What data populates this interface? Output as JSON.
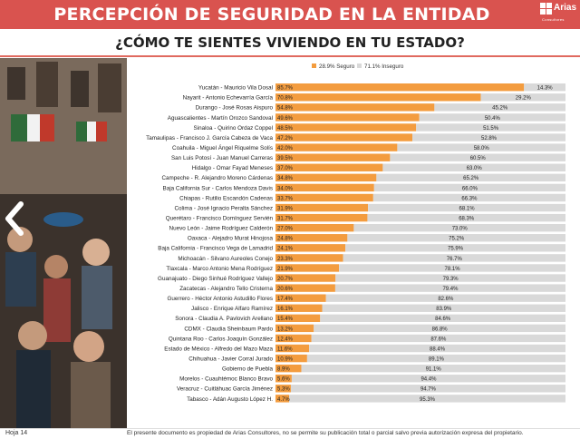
{
  "header": {
    "title": "PERCEPCIÓN DE SEGURIDAD EN LA ENTIDAD",
    "logo_brand": "Arias",
    "logo_sub": "Consultores"
  },
  "subtitle": "¿CÓMO TE SIENTES VIVIENDO EN TU ESTADO?",
  "footer": {
    "page": "Hoja 14",
    "note": "El presente documento es propiedad de Arias Consultores, no se permite su publicación total o parcial salvo previa autorización expresa del propietario."
  },
  "colors": {
    "header_bg": "#d9534f",
    "seguro": "#f39c3f",
    "inseguro": "#d9d9d9"
  },
  "chart_data": {
    "type": "bar",
    "orientation": "horizontal",
    "stacked": true,
    "legend_position": "top-center",
    "xlim": [
      0,
      100
    ],
    "grid": false,
    "categories": [
      "Yucatán - Mauricio Vila Dosal",
      "Nayarit - Antonio Echevarría García",
      "Durango - José Rosas Aispuro",
      "Aguascalientes - Martín Orozco Sandoval",
      "Sinaloa - Quirino Ordaz Coppel",
      "Tamaulipas - Francisco J. García Cabeza de Vaca",
      "Coahuila - Miguel Ángel Riquelme Solís",
      "San Luis Potosí - Juan Manuel Carreras",
      "Hidalgo - Omar Fayad Meneses",
      "Campeche - R. Alejandro Moreno Cárdenas",
      "Baja California Sur - Carlos Mendoza Davis",
      "Chiapas - Rutilio Escandón Cadenas",
      "Colima - José Ignacio Peralta Sánchez",
      "Querétaro - Francisco Domínguez Servién",
      "Nuevo León - Jaime Rodríguez Calderón",
      "Oaxaca - Alejadro Murat Hinojosa",
      "Baja California - Francisco Vega de Lamadrid",
      "Michoacán - Silvano Aureoles Conejo",
      "Tlaxcala - Marco Antonio Mena Rodríguez",
      "Guanajuato - Diego Sinhué Rodríguez Vallejo",
      "Zacatecas - Alejandro Tello Cristerna",
      "Guerrero - Héctor Antonio Astudillo Flores",
      "Jalisco - Enrique Alfaro Ramírez",
      "Sonora - Claudia A. Pavlovich Arellano",
      "CDMX - Claudia Sheinbaum Pardo",
      "Quintana Roo - Carlos Joaquín González",
      "Estado de México - Alfredo del Mazo Maza",
      "Chihuahua - Javier Corral Jurado",
      "Gobierno de Puebla",
      "Morelos - Cuauhtémoc Blanco Bravo",
      "Veracruz - Cuitláhuac García Jiménez",
      "Tabasco - Adán Augusto López H."
    ],
    "series": [
      {
        "name": "28.9% Seguro",
        "color": "#f39c3f",
        "labels": [
          "85.7%",
          "70.8%",
          "54.8%",
          "49.6%",
          "48.5%",
          "47.2%",
          "42.0%",
          "39.5%",
          "37.0%",
          "34.8%",
          "34.0%",
          "33.7%",
          "31.9%",
          "31.7%",
          "27.0%",
          "24.8%",
          "24.1%",
          "23.3%",
          "21.9%",
          "20.7%",
          "20.6%",
          "17.4%",
          "16.1%",
          "15.4%",
          "13.2%",
          "12.4%",
          "11.6%",
          "10.9%",
          "8.9%",
          "5.6%",
          "5.3%",
          "4.7%"
        ],
        "values": [
          85.7,
          70.8,
          54.8,
          49.6,
          48.5,
          47.2,
          42.0,
          39.5,
          37.0,
          34.8,
          34.0,
          33.7,
          31.9,
          31.7,
          27.0,
          24.8,
          24.1,
          23.3,
          21.9,
          20.7,
          20.6,
          17.4,
          16.1,
          15.4,
          13.2,
          12.4,
          11.6,
          10.9,
          8.9,
          5.6,
          5.3,
          4.7
        ]
      },
      {
        "name": "71.1% Inseguro",
        "color": "#d9d9d9",
        "labels": [
          "14.3%",
          "29.2%",
          "45.2%",
          "50.4%",
          "51.5%",
          "52.8%",
          "58.0%",
          "60.5%",
          "63.0%",
          "65.2%",
          "66.0%",
          "66.3%",
          "68.1%",
          "68.3%",
          "73.0%",
          "75.2%",
          "75.9%",
          "76.7%",
          "78.1%",
          "79.3%",
          "79.4%",
          "82.6%",
          "83.9%",
          "84.6%",
          "86.8%",
          "87.6%",
          "88.4%",
          "89.1%",
          "91.1%",
          "94.4%",
          "94.7%",
          "95.3%"
        ],
        "values": [
          14.3,
          29.2,
          45.2,
          50.4,
          51.5,
          52.8,
          58.0,
          60.5,
          63.0,
          65.2,
          66.0,
          66.3,
          68.1,
          68.3,
          73.0,
          75.2,
          75.9,
          76.7,
          78.1,
          79.3,
          79.4,
          82.6,
          83.9,
          84.6,
          86.8,
          87.6,
          88.4,
          89.1,
          91.1,
          94.4,
          94.7,
          95.3
        ]
      }
    ]
  }
}
